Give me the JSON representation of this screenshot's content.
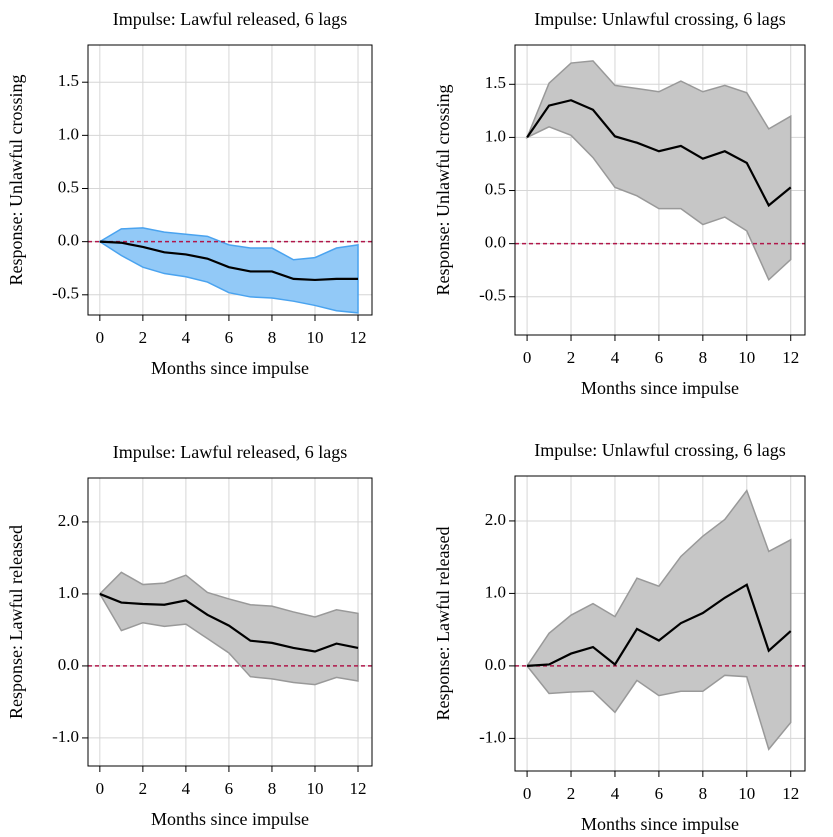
{
  "chart_data": [
    {
      "type": "line",
      "title": "Impulse: Lawful released, 6 lags",
      "xlabel": "Months since impulse",
      "ylabel": "Response: Unlawful crossing",
      "x": [
        0,
        1,
        2,
        3,
        4,
        5,
        6,
        7,
        8,
        9,
        10,
        11,
        12
      ],
      "values": [
        0,
        -0.01,
        -0.05,
        -0.1,
        -0.12,
        -0.16,
        -0.24,
        -0.28,
        -0.28,
        -0.35,
        -0.36,
        -0.35,
        -0.35
      ],
      "upper": [
        0,
        0.12,
        0.13,
        0.09,
        0.07,
        0.05,
        -0.03,
        -0.06,
        -0.06,
        -0.17,
        -0.15,
        -0.06,
        -0.03
      ],
      "lower": [
        0,
        -0.13,
        -0.24,
        -0.3,
        -0.33,
        -0.38,
        -0.48,
        -0.52,
        -0.53,
        -0.56,
        -0.6,
        -0.65,
        -0.67
      ],
      "color": "#000000",
      "band_color": "#92c9f7",
      "band_edge": "#4aa3ef",
      "reference_line": 0,
      "reference_color": "#b0174a",
      "xlim": [
        -0.55,
        12.65
      ],
      "xticks": [
        0,
        2,
        4,
        6,
        8,
        10,
        12
      ],
      "ylim": [
        -0.69,
        1.85
      ],
      "yticks": [
        -0.5,
        {
          "value": 0,
          "label": "0.0"
        },
        0.5,
        {
          "value": 1,
          "label": "1.0"
        },
        1.5
      ],
      "grid": true
    },
    {
      "type": "line",
      "title": "Impulse: Unlawful crossing, 6 lags",
      "xlabel": "Months since impulse",
      "ylabel": "Response: Unlawful crossing",
      "x": [
        0,
        1,
        2,
        3,
        4,
        5,
        6,
        7,
        8,
        9,
        10,
        11,
        12
      ],
      "values": [
        1,
        1.3,
        1.35,
        1.26,
        1.01,
        0.95,
        0.87,
        0.92,
        0.8,
        0.87,
        0.76,
        0.36,
        0.53
      ],
      "upper": [
        1,
        1.51,
        1.7,
        1.72,
        1.49,
        1.46,
        1.43,
        1.53,
        1.43,
        1.49,
        1.42,
        1.08,
        1.2
      ],
      "lower": [
        1,
        1.1,
        1.02,
        0.81,
        0.53,
        0.45,
        0.33,
        0.33,
        0.18,
        0.25,
        0.12,
        -0.34,
        -0.15
      ],
      "color": "#000000",
      "band_color": "#c6c6c6",
      "band_edge": "#999999",
      "reference_line": 0,
      "reference_color": "#b0174a",
      "xlim": [
        -0.55,
        12.65
      ],
      "xticks": [
        0,
        2,
        4,
        6,
        8,
        10,
        12
      ],
      "ylim": [
        -0.86,
        1.87
      ],
      "yticks": [
        -0.5,
        {
          "value": 0,
          "label": "0.0"
        },
        0.5,
        {
          "value": 1,
          "label": "1.0"
        },
        1.5
      ],
      "grid": true
    },
    {
      "type": "line",
      "title": "Impulse: Lawful released, 6 lags",
      "xlabel": "Months since impulse",
      "ylabel": "Response: Lawful released",
      "x": [
        0,
        1,
        2,
        3,
        4,
        5,
        6,
        7,
        8,
        9,
        10,
        11,
        12
      ],
      "values": [
        1,
        0.88,
        0.86,
        0.85,
        0.91,
        0.71,
        0.56,
        0.35,
        0.32,
        0.25,
        0.2,
        0.31,
        0.25
      ],
      "upper": [
        1,
        1.3,
        1.13,
        1.15,
        1.26,
        1.02,
        0.93,
        0.85,
        0.83,
        0.75,
        0.68,
        0.78,
        0.73
      ],
      "lower": [
        1,
        0.49,
        0.6,
        0.55,
        0.58,
        0.38,
        0.18,
        -0.15,
        -0.18,
        -0.23,
        -0.26,
        -0.16,
        -0.21
      ],
      "color": "#000000",
      "band_color": "#c6c6c6",
      "band_edge": "#999999",
      "reference_line": 0,
      "reference_color": "#b0174a",
      "xlim": [
        -0.55,
        12.65
      ],
      "xticks": [
        0,
        2,
        4,
        6,
        8,
        10,
        12
      ],
      "ylim": [
        -1.39,
        2.61
      ],
      "yticks": [
        {
          "value": -1,
          "label": "-1.0"
        },
        {
          "value": 0,
          "label": "0.0"
        },
        {
          "value": 1,
          "label": "1.0"
        },
        {
          "value": 2,
          "label": "2.0"
        }
      ],
      "grid": true
    },
    {
      "type": "line",
      "title": "Impulse: Unlawful crossing, 6 lags",
      "xlabel": "Months since impulse",
      "ylabel": "Response: Lawful released",
      "x": [
        0,
        1,
        2,
        3,
        4,
        5,
        6,
        7,
        8,
        9,
        10,
        11,
        12
      ],
      "values": [
        0,
        0.02,
        0.17,
        0.26,
        0.02,
        0.51,
        0.35,
        0.59,
        0.73,
        0.94,
        1.12,
        0.21,
        0.48
      ],
      "upper": [
        0,
        0.45,
        0.7,
        0.86,
        0.68,
        1.21,
        1.1,
        1.51,
        1.79,
        2.02,
        2.42,
        1.58,
        1.74
      ],
      "lower": [
        0,
        -0.38,
        -0.36,
        -0.35,
        -0.64,
        -0.2,
        -0.41,
        -0.35,
        -0.35,
        -0.13,
        -0.15,
        -1.15,
        -0.78
      ],
      "color": "#000000",
      "band_color": "#c6c6c6",
      "band_edge": "#999999",
      "reference_line": 0,
      "reference_color": "#b0174a",
      "xlim": [
        -0.55,
        12.65
      ],
      "xticks": [
        0,
        2,
        4,
        6,
        8,
        10,
        12
      ],
      "ylim": [
        -1.45,
        2.62
      ],
      "yticks": [
        {
          "value": -1,
          "label": "-1.0"
        },
        {
          "value": 0,
          "label": "0.0"
        },
        {
          "value": 1,
          "label": "1.0"
        },
        {
          "value": 2,
          "label": "2.0"
        }
      ],
      "grid": true
    }
  ]
}
